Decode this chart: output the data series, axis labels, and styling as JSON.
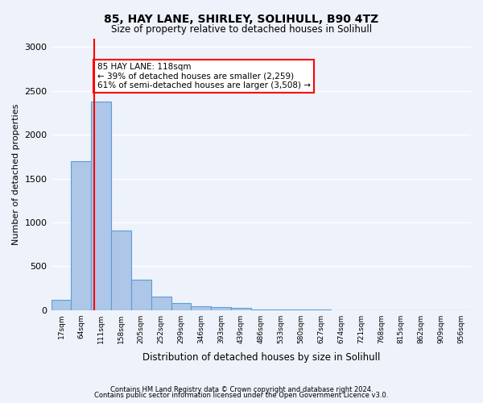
{
  "title1": "85, HAY LANE, SHIRLEY, SOLIHULL, B90 4TZ",
  "title2": "Size of property relative to detached houses in Solihull",
  "xlabel": "Distribution of detached houses by size in Solihull",
  "ylabel": "Number of detached properties",
  "footer1": "Contains HM Land Registry data © Crown copyright and database right 2024.",
  "footer2": "Contains public sector information licensed under the Open Government Licence v3.0.",
  "bin_labels": [
    "17sqm",
    "64sqm",
    "111sqm",
    "158sqm",
    "205sqm",
    "252sqm",
    "299sqm",
    "346sqm",
    "393sqm",
    "439sqm",
    "486sqm",
    "533sqm",
    "580sqm",
    "627sqm",
    "674sqm",
    "721sqm",
    "768sqm",
    "815sqm",
    "862sqm",
    "909sqm",
    "956sqm"
  ],
  "bar_values": [
    115,
    1700,
    2380,
    910,
    350,
    155,
    80,
    45,
    30,
    20,
    10,
    5,
    3,
    2,
    1,
    1,
    1,
    1,
    1,
    0,
    0
  ],
  "bar_color": "#aec6e8",
  "bar_edge_color": "#5a9fd4",
  "annotation_text": "85 HAY LANE: 118sqm\n← 39% of detached houses are smaller (2,259)\n61% of semi-detached houses are larger (3,508) →",
  "annotation_box_color": "white",
  "annotation_box_edge": "red",
  "red_line_x": 1.649,
  "ylim": [
    0,
    3100
  ],
  "yticks": [
    0,
    500,
    1000,
    1500,
    2000,
    2500,
    3000
  ],
  "background_color": "#eef2fa",
  "axes_background": "#eef2fa"
}
